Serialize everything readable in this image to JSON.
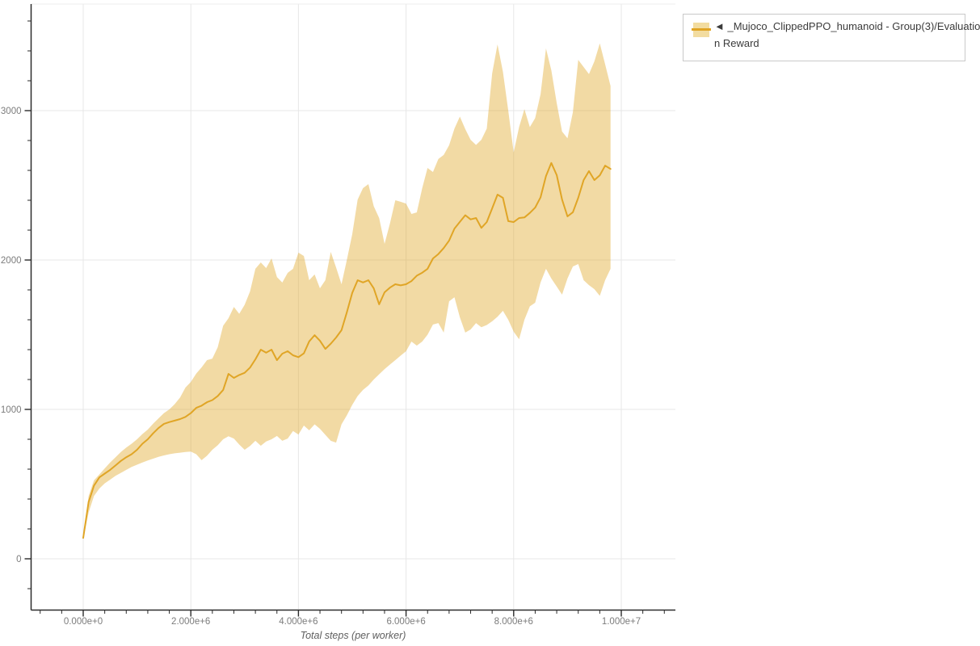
{
  "page": {
    "background": "#ffffff"
  },
  "legend": {
    "full_label": "◄ _Mujoco_ClippedPPO_humanoid - Group(3)/Evaluation Reward",
    "label_line1": "◄ _Mujoco_ClippedPPO_humanoid - Group(3)/Evaluatio",
    "label_line2": "n Reward",
    "swatch_band_color": "#F2DCA0",
    "swatch_line_color": "#E0A526",
    "border_color": "#C9C9C9"
  },
  "chart_data": {
    "type": "line",
    "title": "",
    "xlabel": "Total steps (per worker)",
    "ylabel": "",
    "grid": true,
    "legend_position": "top-right",
    "x_tick_labels": [
      "0.000e+0",
      "2.000e+6",
      "4.000e+6",
      "6.000e+6",
      "8.000e+6",
      "1.000e+7"
    ],
    "x_tick_values_e6": [
      0,
      2,
      4,
      6,
      8,
      10
    ],
    "x_minor_step_e6": 0.4,
    "x_minor_range_e6": [
      -0.8,
      10.8
    ],
    "y_tick_labels": [
      "0",
      "1000",
      "2000",
      "3000"
    ],
    "y_tick_values": [
      0,
      1000,
      2000,
      3000
    ],
    "y_minor_step": 200,
    "y_minor_range": [
      -200,
      3600
    ],
    "x_range_e6": [
      -1.0,
      11.0
    ],
    "y_range": [
      -340,
      3715
    ],
    "colors": {
      "line": "#E0A526",
      "band_fill": "rgba(224, 166, 38, 0.42)",
      "grid": "#e7e7e7",
      "axis": "#2b2b2b",
      "tick_label": "#7c7c7c",
      "axis_title": "#5f5f5f"
    },
    "series": [
      {
        "name": "_Mujoco_ClippedPPO_humanoid - Group(3)/Evaluation Reward",
        "x_e6": [
          0.0,
          0.1,
          0.2,
          0.3,
          0.4,
          0.5,
          0.6,
          0.7,
          0.8,
          0.9,
          1.0,
          1.1,
          1.2,
          1.3,
          1.4,
          1.5,
          1.6,
          1.7,
          1.8,
          1.9,
          2.0,
          2.1,
          2.2,
          2.3,
          2.4,
          2.5,
          2.6,
          2.7,
          2.8,
          2.9,
          3.0,
          3.1,
          3.2,
          3.3,
          3.4,
          3.5,
          3.6,
          3.7,
          3.8,
          3.9,
          4.0,
          4.1,
          4.2,
          4.3,
          4.4,
          4.5,
          4.6,
          4.7,
          4.8,
          4.9,
          5.0,
          5.1,
          5.2,
          5.3,
          5.4,
          5.5,
          5.6,
          5.7,
          5.8,
          5.9,
          6.0,
          6.1,
          6.2,
          6.3,
          6.4,
          6.5,
          6.6,
          6.7,
          6.8,
          6.9,
          7.0,
          7.1,
          7.2,
          7.3,
          7.4,
          7.5,
          7.6,
          7.7,
          7.8,
          7.9,
          8.0,
          8.1,
          8.2,
          8.3,
          8.4,
          8.5,
          8.6,
          8.7,
          8.8,
          8.9,
          9.0,
          9.1,
          9.2,
          9.3,
          9.4,
          9.5,
          9.6,
          9.7,
          9.8
        ],
        "mean": [
          140,
          380,
          490,
          545,
          570,
          595,
          625,
          655,
          680,
          700,
          730,
          770,
          800,
          840,
          875,
          903,
          915,
          925,
          935,
          950,
          975,
          1010,
          1025,
          1048,
          1062,
          1090,
          1130,
          1238,
          1211,
          1230,
          1245,
          1280,
          1335,
          1400,
          1380,
          1400,
          1330,
          1373,
          1390,
          1362,
          1350,
          1375,
          1455,
          1497,
          1460,
          1405,
          1440,
          1481,
          1530,
          1650,
          1780,
          1865,
          1850,
          1865,
          1810,
          1703,
          1784,
          1815,
          1838,
          1830,
          1838,
          1859,
          1895,
          1915,
          1941,
          2010,
          2040,
          2080,
          2130,
          2210,
          2255,
          2300,
          2272,
          2281,
          2215,
          2254,
          2346,
          2438,
          2416,
          2260,
          2254,
          2281,
          2285,
          2315,
          2351,
          2420,
          2562,
          2650,
          2568,
          2405,
          2292,
          2320,
          2416,
          2535,
          2595,
          2535,
          2567,
          2632,
          2610
        ],
        "upper": [
          150,
          420,
          525,
          565,
          605,
          645,
          680,
          715,
          745,
          770,
          800,
          835,
          865,
          905,
          940,
          975,
          1000,
          1035,
          1080,
          1146,
          1184,
          1240,
          1281,
          1330,
          1340,
          1416,
          1560,
          1610,
          1686,
          1640,
          1700,
          1790,
          1941,
          1984,
          1946,
          2011,
          1886,
          1849,
          1914,
          1941,
          2049,
          2027,
          1865,
          1903,
          1811,
          1865,
          2054,
          1950,
          1838,
          2000,
          2173,
          2405,
          2481,
          2508,
          2360,
          2281,
          2108,
          2243,
          2400,
          2390,
          2378,
          2308,
          2319,
          2481,
          2616,
          2589,
          2676,
          2703,
          2768,
          2880,
          2960,
          2876,
          2805,
          2770,
          2805,
          2880,
          3250,
          3443,
          3260,
          3000,
          2720,
          2890,
          3010,
          2890,
          2950,
          3110,
          3416,
          3270,
          3050,
          2860,
          2815,
          2990,
          3340,
          3292,
          3245,
          3330,
          3450,
          3310,
          3165
        ],
        "lower": [
          130,
          310,
          420,
          470,
          505,
          530,
          555,
          575,
          595,
          615,
          630,
          645,
          658,
          670,
          682,
          692,
          700,
          706,
          710,
          715,
          718,
          700,
          660,
          690,
          730,
          760,
          800,
          820,
          805,
          765,
          730,
          755,
          790,
          757,
          785,
          800,
          822,
          790,
          805,
          855,
          832,
          892,
          860,
          900,
          870,
          830,
          790,
          778,
          900,
          960,
          1030,
          1090,
          1130,
          1160,
          1200,
          1235,
          1270,
          1300,
          1330,
          1360,
          1389,
          1454,
          1427,
          1454,
          1500,
          1568,
          1578,
          1514,
          1724,
          1751,
          1616,
          1514,
          1535,
          1578,
          1550,
          1565,
          1590,
          1620,
          1660,
          1600,
          1520,
          1470,
          1600,
          1690,
          1714,
          1850,
          1941,
          1876,
          1822,
          1768,
          1876,
          1957,
          1973,
          1865,
          1832,
          1805,
          1760,
          1865,
          1941
        ]
      }
    ]
  }
}
